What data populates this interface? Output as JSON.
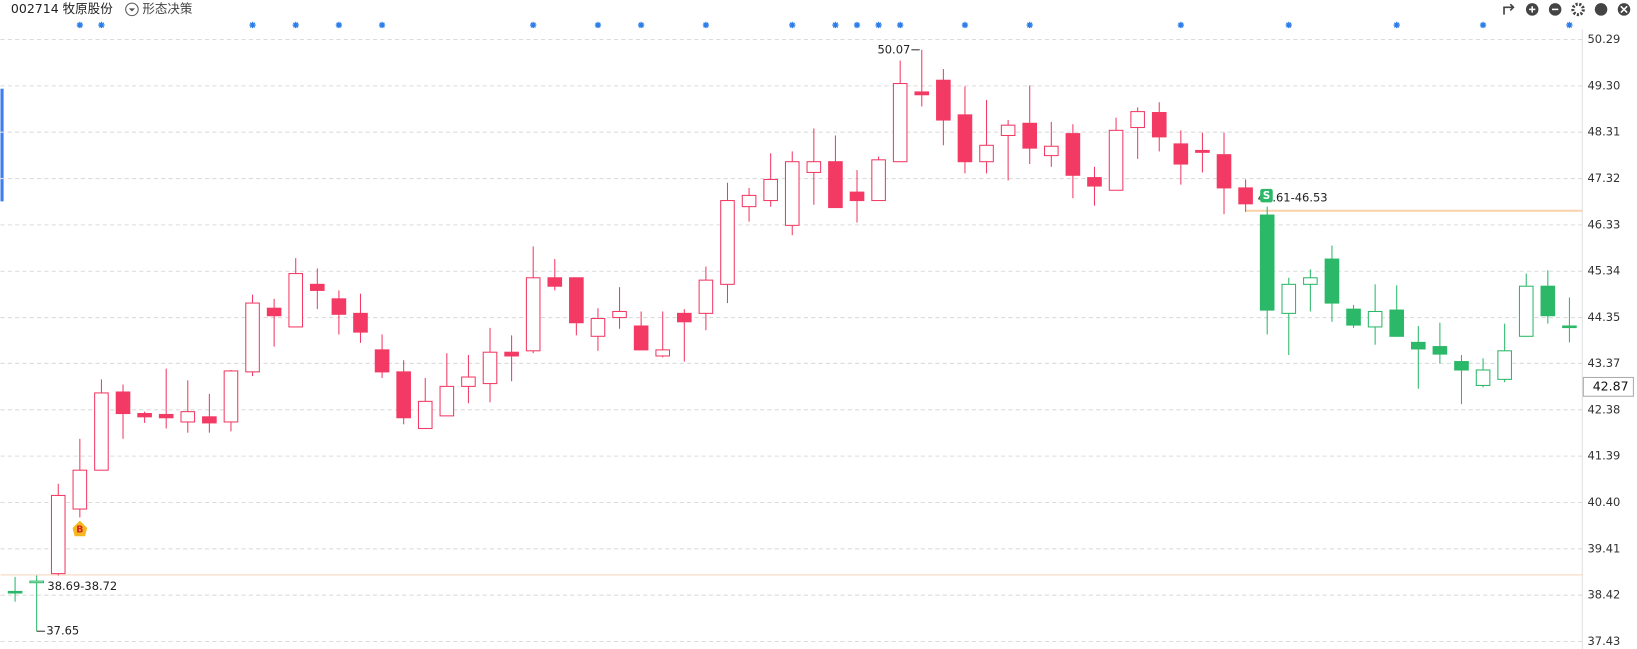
{
  "header": {
    "title": "002714 牧原股份",
    "menu": "形态决策"
  },
  "chart_data": {
    "type": "candlestick",
    "ylim": [
      37.27,
      50.51
    ],
    "yticks": [
      50.29,
      {
        "value": 49.3,
        "label": "49.30"
      },
      48.31,
      47.32,
      46.33,
      45.34,
      44.35,
      43.37,
      42.38,
      41.39,
      {
        "value": 40.4,
        "label": "40.40"
      },
      39.41,
      38.42,
      37.43
    ],
    "grid": true,
    "current_price": 42.87,
    "open": [
      38.5,
      38.69,
      38.88,
      40.26,
      41.09,
      42.76,
      42.3,
      42.28,
      42.12,
      42.23,
      42.12,
      43.19,
      44.55,
      44.15,
      45.06,
      44.75,
      44.44,
      43.66,
      43.19,
      41.98,
      42.25,
      42.88,
      42.94,
      43.61,
      43.64,
      45.2,
      45.2,
      43.95,
      44.35,
      44.17,
      43.53,
      44.44,
      44.44,
      45.06,
      46.72,
      46.85,
      46.32,
      47.45,
      47.68,
      47.03,
      46.85,
      47.68,
      49.17,
      49.42,
      48.68,
      47.68,
      48.24,
      48.5,
      47.81,
      48.28,
      47.34,
      47.07,
      48.41,
      48.73,
      48.06,
      47.92,
      47.83,
      47.12,
      46.54,
      44.44,
      45.06,
      45.6,
      44.53,
      44.15,
      44.51,
      43.82,
      43.73,
      43.41,
      42.9,
      43.03,
      43.95,
      45.02,
      44.17
    ],
    "high": [
      38.81,
      38.84,
      40.8,
      41.76,
      43.03,
      42.92,
      42.34,
      43.26,
      43.01,
      42.72,
      43.23,
      44.84,
      44.75,
      45.62,
      45.4,
      44.93,
      44.86,
      43.99,
      43.44,
      43.06,
      43.59,
      43.55,
      44.13,
      43.97,
      45.87,
      45.6,
      45.2,
      44.55,
      45.0,
      44.48,
      44.48,
      44.53,
      45.44,
      47.23,
      47.12,
      47.86,
      47.9,
      48.39,
      48.24,
      47.5,
      47.79,
      49.84,
      50.07,
      49.66,
      49.29,
      49.0,
      48.57,
      49.31,
      48.53,
      48.48,
      47.57,
      48.62,
      48.84,
      48.95,
      48.35,
      48.3,
      48.3,
      47.3,
      46.72,
      45.2,
      45.38,
      45.89,
      44.62,
      45.06,
      45.04,
      44.17,
      44.24,
      43.55,
      43.48,
      44.22,
      45.29,
      45.36,
      44.78
    ],
    "low": [
      38.28,
      37.65,
      38.84,
      40.08,
      41.09,
      41.76,
      42.1,
      41.98,
      41.89,
      41.89,
      41.92,
      43.1,
      43.73,
      44.15,
      44.53,
      43.99,
      43.81,
      43.06,
      42.07,
      41.98,
      42.25,
      42.52,
      42.54,
      42.99,
      43.59,
      44.93,
      43.97,
      43.64,
      44.11,
      43.66,
      43.5,
      43.41,
      44.08,
      44.66,
      46.4,
      46.72,
      46.11,
      46.76,
      46.7,
      46.38,
      46.85,
      47.68,
      48.86,
      48.03,
      47.43,
      47.43,
      47.28,
      47.63,
      47.57,
      46.9,
      46.74,
      47.07,
      47.74,
      47.9,
      47.19,
      47.45,
      46.56,
      46.61,
      43.99,
      43.55,
      44.48,
      44.26,
      44.13,
      43.77,
      43.95,
      42.83,
      43.37,
      42.5,
      42.86,
      42.97,
      43.95,
      44.22,
      43.82
    ],
    "close": [
      38.5,
      38.72,
      40.55,
      41.09,
      42.74,
      42.3,
      42.23,
      42.21,
      42.34,
      42.1,
      43.21,
      44.66,
      44.39,
      45.29,
      44.93,
      44.42,
      44.04,
      43.19,
      42.21,
      42.56,
      42.88,
      43.08,
      43.61,
      43.53,
      45.2,
      45.02,
      44.24,
      44.33,
      44.48,
      43.66,
      43.66,
      44.26,
      45.15,
      46.85,
      46.96,
      47.3,
      47.68,
      47.68,
      46.7,
      46.85,
      47.72,
      49.35,
      49.11,
      48.57,
      47.68,
      48.03,
      48.46,
      47.97,
      48.01,
      47.39,
      47.16,
      48.35,
      48.75,
      48.21,
      47.63,
      47.88,
      47.12,
      46.78,
      44.51,
      45.06,
      45.2,
      44.66,
      44.19,
      44.48,
      43.95,
      43.68,
      43.57,
      43.23,
      43.23,
      43.64,
      45.02,
      44.39,
      44.17
    ],
    "colors": [
      "#2bb868",
      "#2bb868",
      "#f23a64",
      "#f23a64",
      "#f23a64",
      "#f23a64",
      "#f23a64",
      "#f23a64",
      "#f23a64",
      "#f23a64",
      "#f23a64",
      "#f23a64",
      "#f23a64",
      "#f23a64",
      "#f23a64",
      "#f23a64",
      "#f23a64",
      "#f23a64",
      "#f23a64",
      "#f23a64",
      "#f23a64",
      "#f23a64",
      "#f23a64",
      "#f23a64",
      "#f23a64",
      "#f23a64",
      "#f23a64",
      "#f23a64",
      "#f23a64",
      "#f23a64",
      "#f23a64",
      "#f23a64",
      "#f23a64",
      "#f23a64",
      "#f23a64",
      "#f23a64",
      "#f23a64",
      "#f23a64",
      "#f23a64",
      "#f23a64",
      "#f23a64",
      "#f23a64",
      "#f23a64",
      "#f23a64",
      "#f23a64",
      "#f23a64",
      "#f23a64",
      "#f23a64",
      "#f23a64",
      "#f23a64",
      "#f23a64",
      "#f23a64",
      "#f23a64",
      "#f23a64",
      "#f23a64",
      "#f23a64",
      "#f23a64",
      "#f23a64",
      "#2bb868",
      "#2bb868",
      "#2bb868",
      "#2bb868",
      "#2bb868",
      "#2bb868",
      "#2bb868",
      "#2bb868",
      "#2bb868",
      "#2bb868",
      "#2bb868",
      "#2bb868",
      "#2bb868",
      "#2bb868",
      "#2bb868"
    ],
    "annotations": [
      "50.07",
      "38.69-38.72",
      "37.65",
      "46.61-46.53",
      "B",
      "S"
    ]
  }
}
